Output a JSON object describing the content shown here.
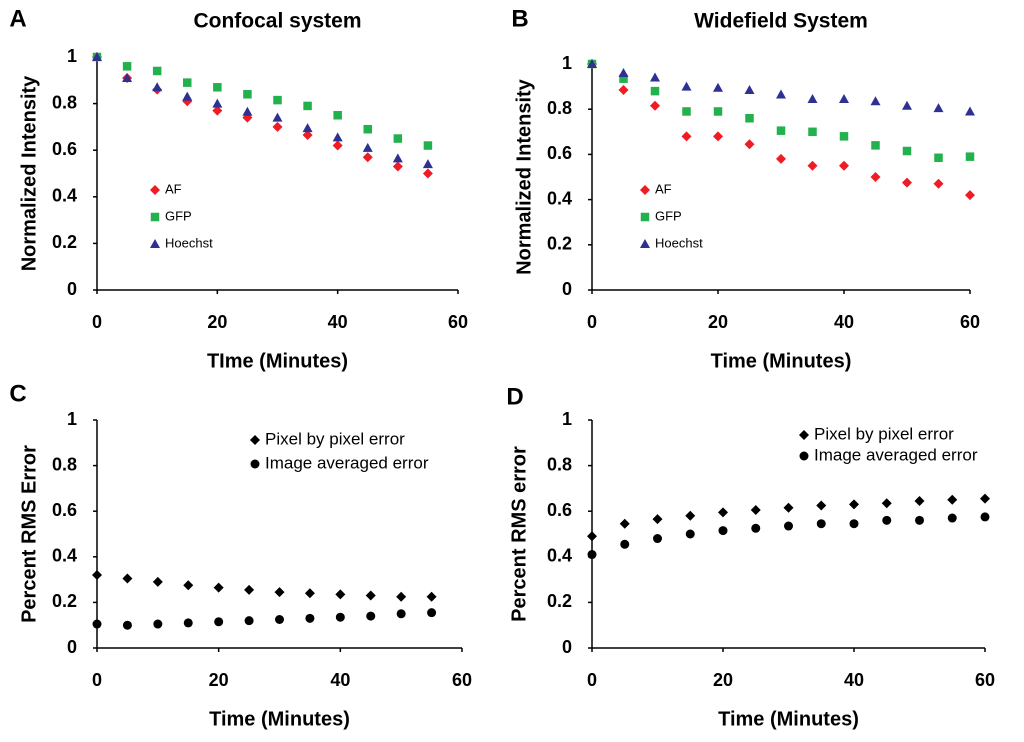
{
  "chart_data": [
    {
      "type": "scatter",
      "label": "A",
      "title": "Confocal system",
      "x_label": "TIme (Minutes)",
      "y_label": "Normalized Intensity",
      "x": [
        0,
        5,
        10,
        15,
        20,
        25,
        30,
        35,
        40,
        45,
        50,
        55
      ],
      "xlim": [
        0,
        60
      ],
      "xticks": [
        0,
        20,
        40,
        60
      ],
      "ylim": [
        0,
        1
      ],
      "yticks": [
        0,
        0.2,
        0.4,
        0.6,
        0.8,
        1
      ],
      "series": [
        {
          "name": "AF",
          "color": "#ee1c25",
          "marker": "diamond",
          "values": [
            1.0,
            0.91,
            0.86,
            0.81,
            0.77,
            0.74,
            0.7,
            0.665,
            0.62,
            0.57,
            0.53,
            0.5
          ]
        },
        {
          "name": "GFP",
          "color": "#22b14c",
          "marker": "square",
          "values": [
            1.0,
            0.96,
            0.94,
            0.89,
            0.87,
            0.84,
            0.815,
            0.79,
            0.75,
            0.69,
            0.65,
            0.62
          ]
        },
        {
          "name": "Hoechst",
          "color": "#2e3192",
          "marker": "triangle",
          "values": [
            1.0,
            0.91,
            0.87,
            0.83,
            0.8,
            0.765,
            0.74,
            0.695,
            0.655,
            0.61,
            0.565,
            0.54
          ]
        }
      ]
    },
    {
      "type": "scatter",
      "label": "B",
      "title": "Widefield System",
      "x_label": "Time (Minutes)",
      "y_label": "Normalized Intensity",
      "x": [
        0,
        5,
        10,
        15,
        20,
        25,
        30,
        35,
        40,
        45,
        50,
        55,
        60
      ],
      "xlim": [
        0,
        60
      ],
      "xticks": [
        0,
        20,
        40,
        60
      ],
      "ylim": [
        0,
        1
      ],
      "yticks": [
        0,
        0.2,
        0.4,
        0.6,
        0.8,
        1
      ],
      "series": [
        {
          "name": "AF",
          "color": "#ee1c25",
          "marker": "diamond",
          "values": [
            1.0,
            0.885,
            0.815,
            0.68,
            0.68,
            0.645,
            0.58,
            0.55,
            0.55,
            0.5,
            0.475,
            0.47,
            0.42
          ]
        },
        {
          "name": "GFP",
          "color": "#22b14c",
          "marker": "square",
          "values": [
            1.0,
            0.935,
            0.88,
            0.79,
            0.79,
            0.76,
            0.705,
            0.7,
            0.68,
            0.64,
            0.615,
            0.585,
            0.59
          ]
        },
        {
          "name": "Hoechst",
          "color": "#2e3192",
          "marker": "triangle",
          "values": [
            1.0,
            0.96,
            0.94,
            0.9,
            0.895,
            0.885,
            0.865,
            0.845,
            0.845,
            0.835,
            0.815,
            0.805,
            0.79
          ]
        }
      ]
    },
    {
      "type": "scatter",
      "label": "C",
      "x_label": "Time (Minutes)",
      "y_label": "Percent RMS Error",
      "x": [
        0,
        5,
        10,
        15,
        20,
        25,
        30,
        35,
        40,
        45,
        50,
        55
      ],
      "xlim": [
        0,
        60
      ],
      "xticks": [
        0,
        20,
        40,
        60
      ],
      "ylim": [
        0,
        1
      ],
      "yticks": [
        0,
        0.2,
        0.4,
        0.6,
        0.8,
        1
      ],
      "series": [
        {
          "name": "Pixel by pixel error",
          "color": "#000000",
          "marker": "diamond",
          "values": [
            0.32,
            0.305,
            0.29,
            0.275,
            0.265,
            0.255,
            0.245,
            0.24,
            0.235,
            0.23,
            0.225,
            0.225
          ]
        },
        {
          "name": "Image averaged error",
          "color": "#000000",
          "marker": "circle",
          "values": [
            0.105,
            0.1,
            0.105,
            0.11,
            0.115,
            0.12,
            0.125,
            0.13,
            0.135,
            0.14,
            0.15,
            0.155
          ]
        }
      ]
    },
    {
      "type": "scatter",
      "label": "D",
      "x_label": "Time (Minutes)",
      "y_label": "Percent RMS error",
      "x": [
        0,
        5,
        10,
        15,
        20,
        25,
        30,
        35,
        40,
        45,
        50,
        55,
        60
      ],
      "xlim": [
        0,
        60
      ],
      "xticks": [
        0,
        20,
        40,
        60
      ],
      "ylim": [
        0,
        1
      ],
      "yticks": [
        0,
        0.2,
        0.4,
        0.6,
        0.8,
        1
      ],
      "series": [
        {
          "name": "Pixel by pixel error",
          "color": "#000000",
          "marker": "diamond",
          "values": [
            0.49,
            0.545,
            0.565,
            0.58,
            0.595,
            0.605,
            0.615,
            0.625,
            0.63,
            0.635,
            0.645,
            0.65,
            0.655
          ]
        },
        {
          "name": "Image averaged error",
          "color": "#000000",
          "marker": "circle",
          "values": [
            0.41,
            0.455,
            0.48,
            0.5,
            0.515,
            0.525,
            0.535,
            0.545,
            0.545,
            0.56,
            0.56,
            0.57,
            0.575
          ]
        }
      ]
    }
  ]
}
